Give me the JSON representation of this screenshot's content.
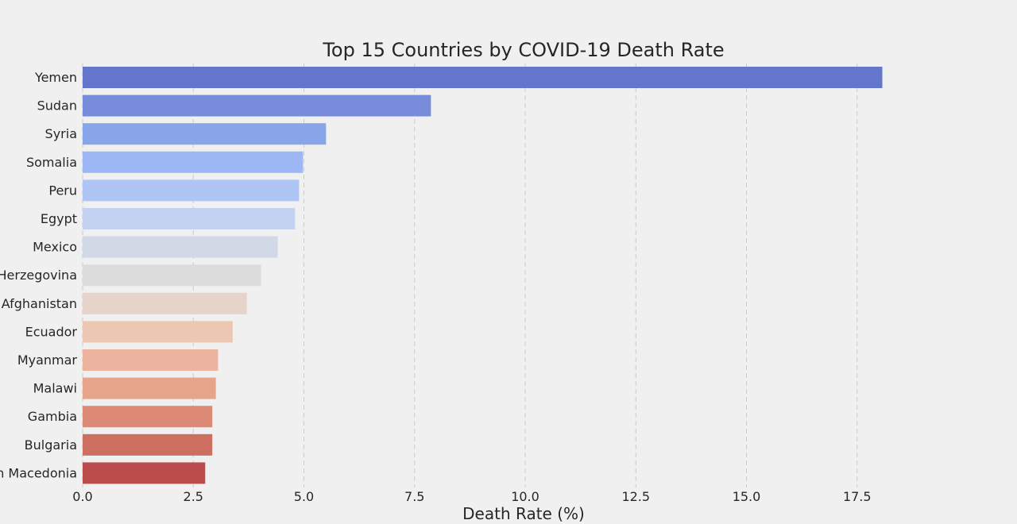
{
  "chart_data": {
    "type": "bar",
    "orientation": "horizontal",
    "title": "Top 15 Countries by COVID-19 Death Rate",
    "xlabel": "Death Rate (%)",
    "ylabel": "",
    "xlim": [
      0,
      20.0
    ],
    "xticks": [
      0.0,
      2.5,
      5.0,
      7.5,
      10.0,
      12.5,
      15.0,
      17.5
    ],
    "xtick_labels": [
      "0.0",
      "2.5",
      "5.0",
      "7.5",
      "10.0",
      "12.5",
      "15.0",
      "17.5"
    ],
    "grid": "vertical dashed",
    "categories": [
      "Yemen",
      "Sudan",
      "Syria",
      "Somalia",
      "Peru",
      "Egypt",
      "Mexico",
      "Bosnia and Herzegovina",
      "Afghanistan",
      "Ecuador",
      "Myanmar",
      "Malawi",
      "Gambia",
      "Bulgaria",
      "North Macedonia"
    ],
    "values": [
      18.07,
      7.87,
      5.5,
      4.98,
      4.89,
      4.8,
      4.41,
      4.03,
      3.71,
      3.39,
      3.06,
      3.01,
      2.93,
      2.93,
      2.77
    ],
    "colors": [
      "#6476cb",
      "#778ddc",
      "#89a5e9",
      "#9cb7f3",
      "#aec5f5",
      "#c2d2f0",
      "#d1d9e6",
      "#dcdcdc",
      "#e6d3ca",
      "#ecc7b4",
      "#ecb49e",
      "#e6a58a",
      "#dc8975",
      "#cc6f61",
      "#ba4c4c"
    ]
  }
}
